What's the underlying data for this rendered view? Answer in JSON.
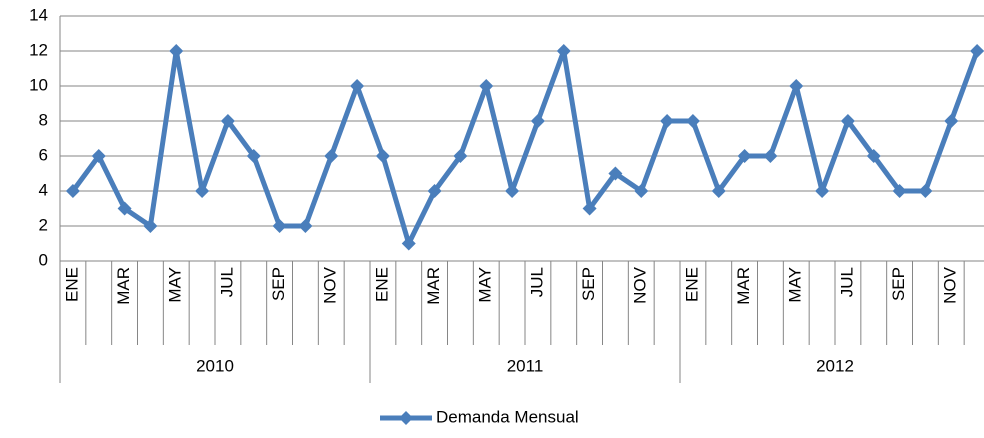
{
  "chart_data": {
    "type": "line",
    "categories": [
      "ENE",
      null,
      "MAR",
      null,
      "MAY",
      null,
      "JUL",
      null,
      "SEP",
      null,
      "NOV",
      null,
      "ENE",
      null,
      "MAR",
      null,
      "MAY",
      null,
      "JUL",
      null,
      "SEP",
      null,
      "NOV",
      null,
      "ENE",
      null,
      "MAR",
      null,
      "MAY",
      null,
      "JUL",
      null,
      "SEP",
      null,
      "NOV",
      null
    ],
    "groups": [
      "2010",
      "2011",
      "2012"
    ],
    "series": [
      {
        "name": "Demanda Mensual",
        "color": "#4a7ebb",
        "values": [
          4,
          6,
          3,
          2,
          12,
          4,
          8,
          6,
          2,
          2,
          6,
          10,
          6,
          1,
          4,
          6,
          10,
          4,
          8,
          12,
          3,
          5,
          4,
          8,
          8,
          4,
          6,
          6,
          10,
          4,
          8,
          6,
          4,
          4,
          8,
          12
        ]
      }
    ],
    "ylim": [
      0,
      14
    ],
    "yticks": [
      0,
      2,
      4,
      6,
      8,
      10,
      12,
      14
    ],
    "grid": true,
    "legend": "bottom"
  }
}
